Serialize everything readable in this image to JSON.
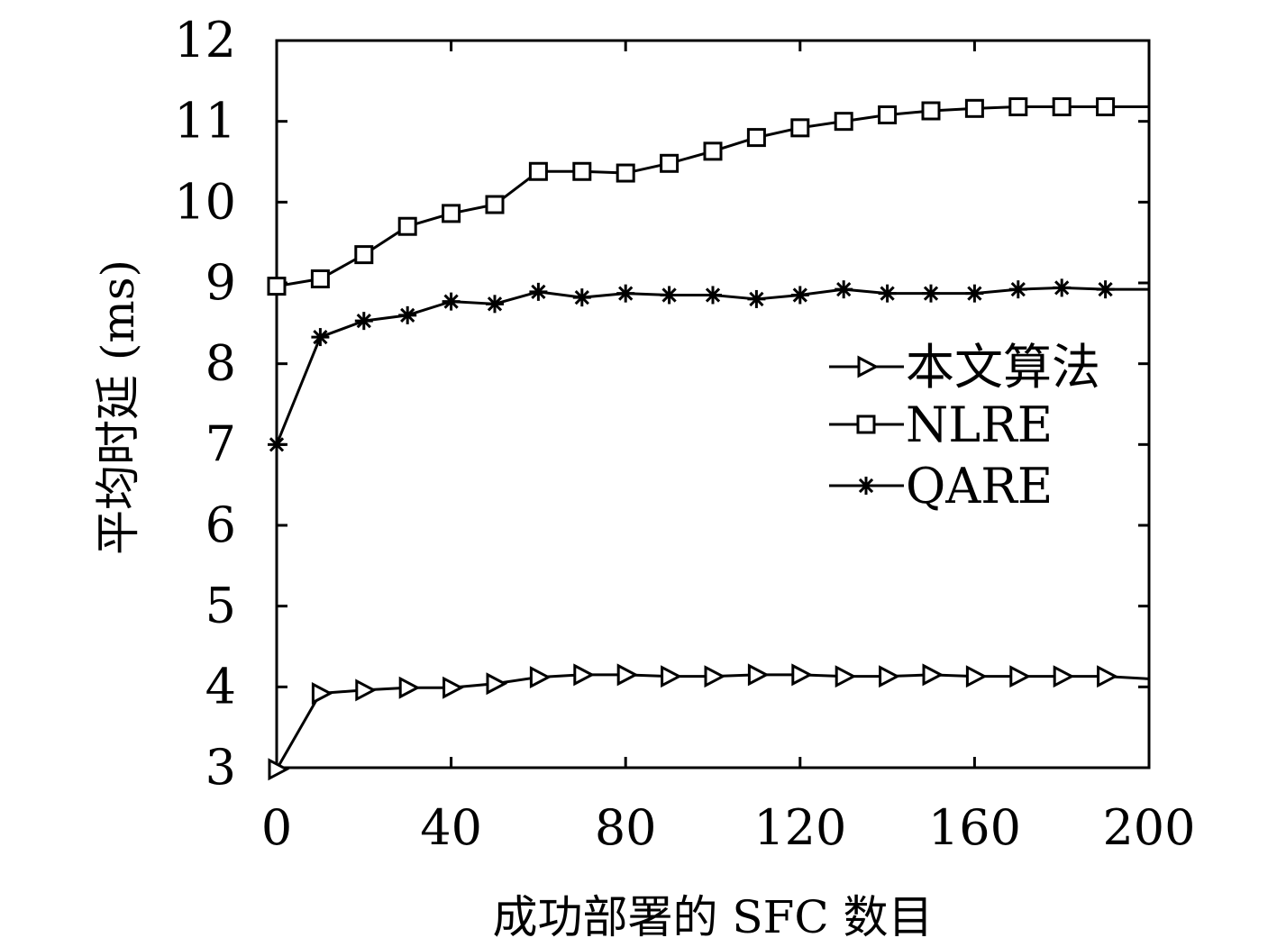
{
  "chart_data": {
    "type": "line",
    "title": "",
    "xlabel": "成功部署的 SFC 数目",
    "ylabel": "平均时延 (ms)",
    "xlim": [
      0,
      200
    ],
    "ylim": [
      3,
      12
    ],
    "xticks": [
      0,
      40,
      80,
      120,
      160,
      200
    ],
    "yticks": [
      3,
      4,
      5,
      6,
      7,
      8,
      9,
      10,
      11,
      12
    ],
    "grid": false,
    "legend_position": "center-right",
    "x": [
      0,
      10,
      20,
      30,
      40,
      50,
      60,
      70,
      80,
      90,
      100,
      110,
      120,
      130,
      140,
      150,
      160,
      170,
      180,
      190
    ],
    "series": [
      {
        "name": "本文算法",
        "marker": "triangle-right",
        "x_end": 200,
        "y_end": 4.1,
        "values": [
          2.98,
          3.92,
          3.96,
          3.99,
          3.99,
          4.04,
          4.12,
          4.15,
          4.15,
          4.13,
          4.13,
          4.15,
          4.15,
          4.13,
          4.13,
          4.15,
          4.13,
          4.13,
          4.13,
          4.13
        ]
      },
      {
        "name": "NLRE",
        "marker": "square",
        "x_end": 200,
        "y_end": 11.18,
        "values": [
          8.96,
          9.05,
          9.35,
          9.7,
          9.86,
          9.97,
          10.38,
          10.38,
          10.36,
          10.48,
          10.63,
          10.8,
          10.92,
          11.0,
          11.08,
          11.13,
          11.16,
          11.18,
          11.18,
          11.18
        ]
      },
      {
        "name": "QARE",
        "marker": "asterisk",
        "x_end": 200,
        "y_end": 8.92,
        "values": [
          7.0,
          8.33,
          8.53,
          8.6,
          8.77,
          8.74,
          8.89,
          8.82,
          8.87,
          8.85,
          8.85,
          8.8,
          8.85,
          8.92,
          8.87,
          8.87,
          8.87,
          8.92,
          8.94,
          8.92
        ]
      }
    ]
  }
}
